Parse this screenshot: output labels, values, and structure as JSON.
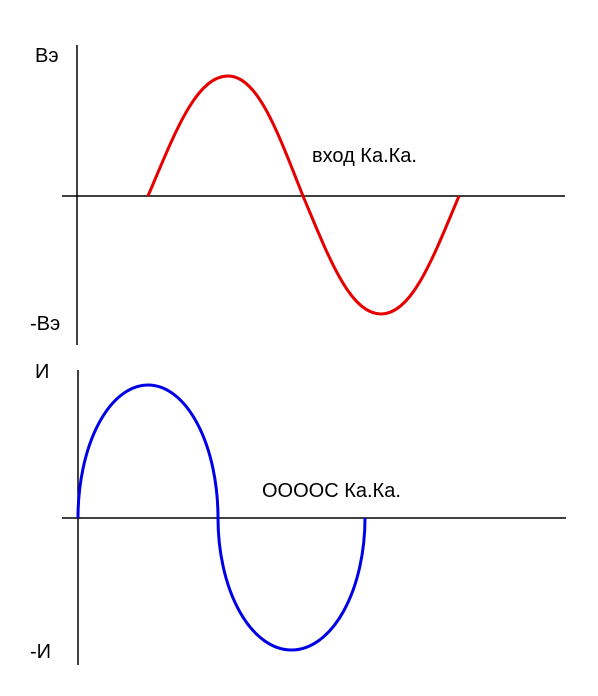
{
  "top": {
    "y_top_label": "Вэ",
    "y_bottom_label": "-Вэ",
    "caption": "вход Ка.Ка."
  },
  "bottom": {
    "y_top_label": "И",
    "y_bottom_label": "-И",
    "caption": "ОOOОС Ка.Ка."
  }
}
